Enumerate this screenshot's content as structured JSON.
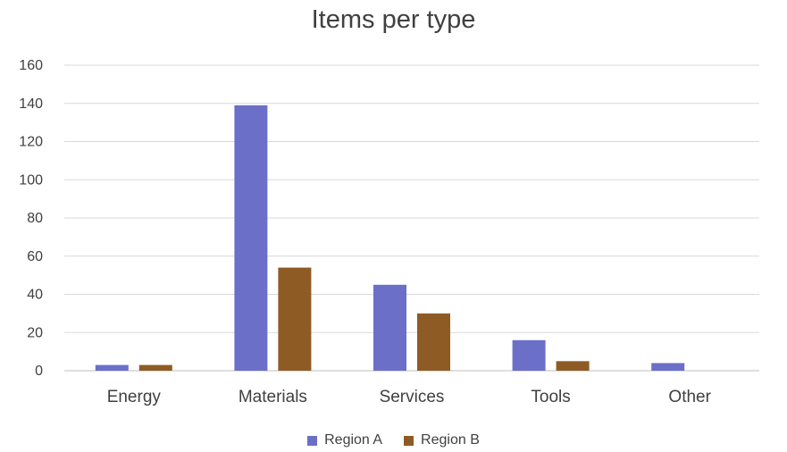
{
  "chart_data": {
    "type": "bar",
    "title": "Items per type",
    "categories": [
      "Energy",
      "Materials",
      "Services",
      "Tools",
      "Other"
    ],
    "series": [
      {
        "name": "Region A",
        "color": "#6b6fc8",
        "values": [
          3,
          139,
          45,
          16,
          4
        ]
      },
      {
        "name": "Region B",
        "color": "#8e5b25",
        "values": [
          3,
          54,
          30,
          5,
          0
        ]
      }
    ],
    "ylim": [
      0,
      160
    ],
    "yticks": [
      0,
      20,
      40,
      60,
      80,
      100,
      120,
      140,
      160
    ],
    "grid": true,
    "legend_position": "bottom"
  }
}
